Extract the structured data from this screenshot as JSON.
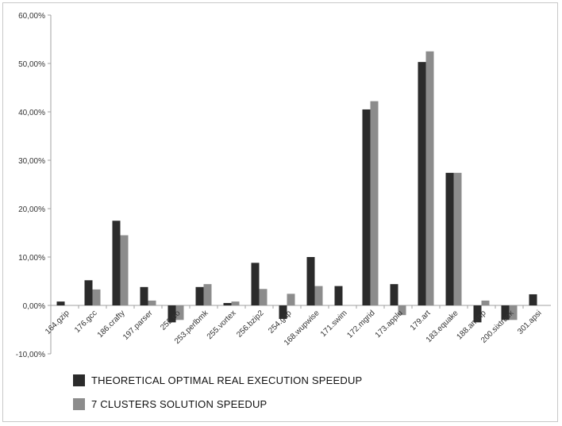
{
  "chart_data": {
    "type": "bar",
    "categories": [
      "164.gzip",
      "176.gcc",
      "186.crafty",
      "197.parser",
      "252.eo",
      "253.perlbmk",
      "255.vortex",
      "256.bzip2",
      "254.gap",
      "168.wupwise",
      "171.swim",
      "172.mgrid",
      "173.applu",
      "179.art",
      "183.equake",
      "188.ammp",
      "200.sixtrack",
      "301.apsi"
    ],
    "series": [
      {
        "name": "THEORETICAL OPTIMAL REAL EXECUTION SPEEDUP",
        "color": "#2b2b2b",
        "values": [
          0.8,
          5.2,
          17.5,
          3.8,
          -3.5,
          3.8,
          0.5,
          8.8,
          -2.8,
          10.0,
          4.0,
          40.5,
          4.4,
          50.3,
          27.4,
          -3.5,
          -3.0,
          2.3
        ]
      },
      {
        "name": "7 CLUSTERS SOLUTION SPEEDUP",
        "color": "#8c8c8c",
        "values": [
          0.0,
          3.3,
          14.5,
          1.0,
          -3.0,
          4.4,
          0.8,
          3.4,
          2.4,
          4.0,
          0.0,
          42.2,
          -2.0,
          52.5,
          27.4,
          1.0,
          -3.0,
          0.0
        ]
      }
    ],
    "yticks": [
      "-10,00%",
      "0,00%",
      "10,00%",
      "20,00%",
      "30,00%",
      "40,00%",
      "50,00%",
      "60,00%"
    ],
    "ylim": [
      -10,
      60
    ],
    "grid": false,
    "legend_position": "bottom"
  }
}
